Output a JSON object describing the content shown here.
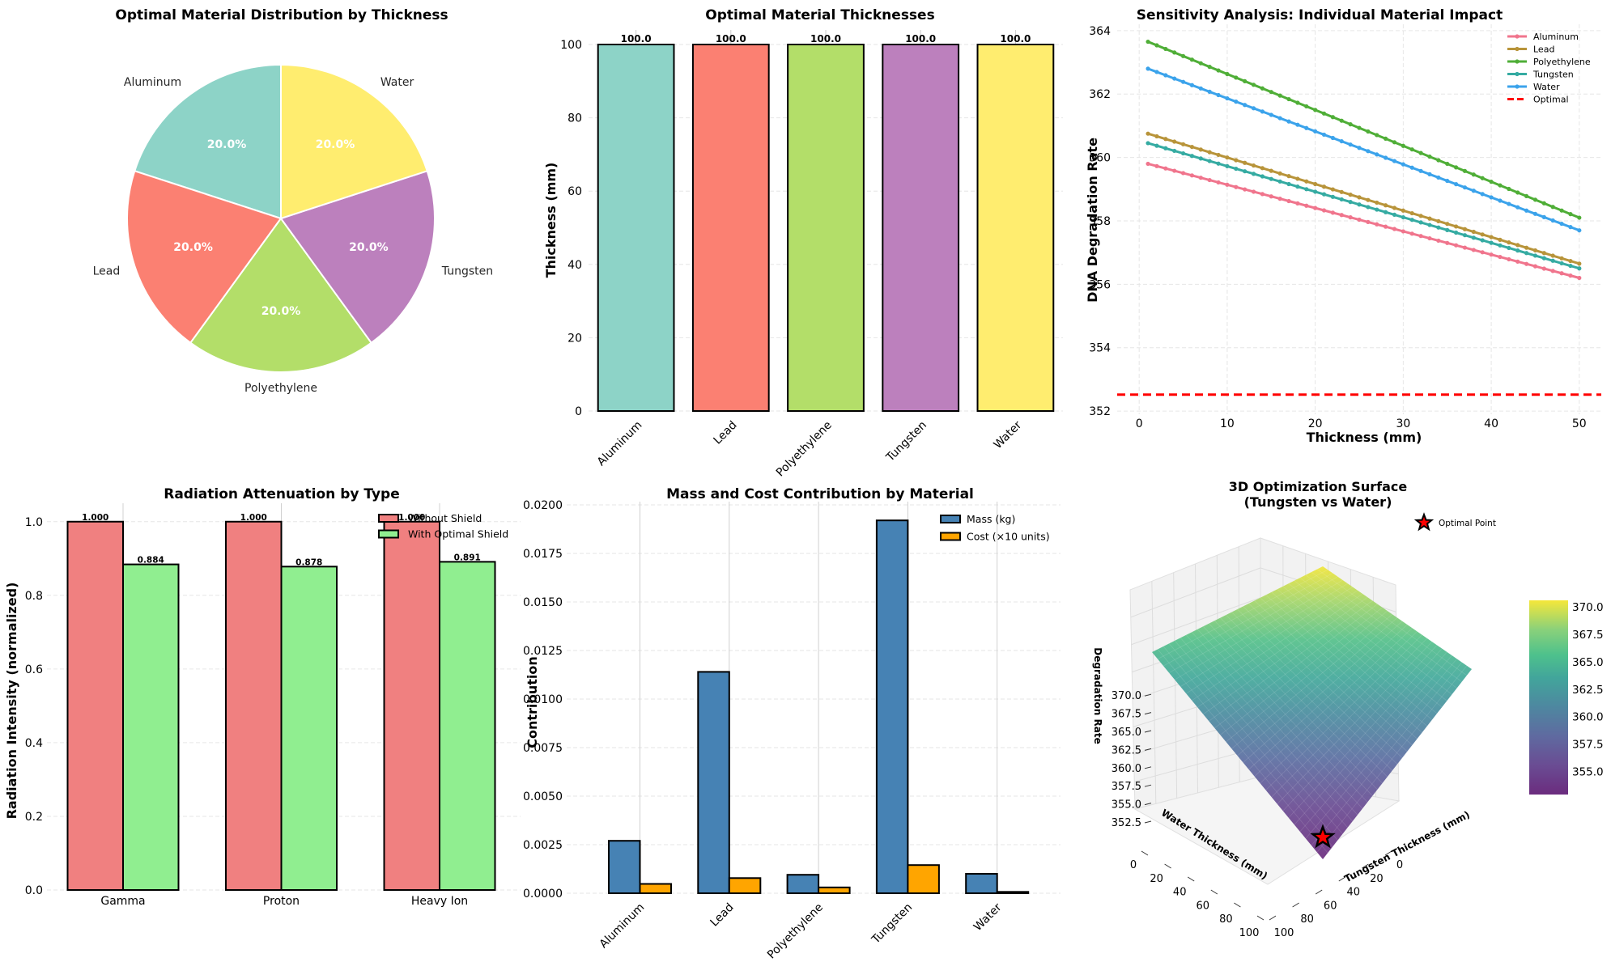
{
  "chart_data": [
    {
      "id": "pie",
      "type": "pie",
      "title": "Optimal Material Distribution by Thickness",
      "labels": [
        "Aluminum",
        "Lead",
        "Polyethylene",
        "Tungsten",
        "Water"
      ],
      "values": [
        20.0,
        20.0,
        20.0,
        20.0,
        20.0
      ],
      "pct_labels": [
        "20.0%",
        "20.0%",
        "20.0%",
        "20.0%",
        "20.0%"
      ],
      "colors": [
        "#8dd3c7",
        "#fb8072",
        "#b3de69",
        "#bc80bd",
        "#ffed6f"
      ],
      "start_angle_deg": 90,
      "direction": "counterclockwise"
    },
    {
      "id": "thickness",
      "type": "bar",
      "title": "Optimal Material Thicknesses",
      "categories": [
        "Aluminum",
        "Lead",
        "Polyethylene",
        "Tungsten",
        "Water"
      ],
      "values": [
        100.0,
        100.0,
        100.0,
        100.0,
        100.0
      ],
      "value_labels": [
        "100.0",
        "100.0",
        "100.0",
        "100.0",
        "100.0"
      ],
      "colors": [
        "#8dd3c7",
        "#fb8072",
        "#b3de69",
        "#bc80bd",
        "#ffed6f"
      ],
      "xlabel": "",
      "ylabel": "Thickness (mm)",
      "ylim": [
        0,
        100
      ],
      "yticks": [
        0,
        20,
        40,
        60,
        80,
        100
      ],
      "grid": "y dashed"
    },
    {
      "id": "sensitivity",
      "type": "line",
      "title": "Sensitivity Analysis: Individual Material Impact",
      "xlabel": "Thickness (mm)",
      "ylabel": "DNA Degradation Rate",
      "x_range": [
        1,
        50
      ],
      "x_step": 1,
      "xlim": [
        -2.5,
        52.5
      ],
      "ylim": [
        351.9,
        364.2
      ],
      "xticks": [
        0,
        10,
        20,
        30,
        40,
        50
      ],
      "yticks": [
        352,
        354,
        356,
        358,
        360,
        362,
        364
      ],
      "series": [
        {
          "name": "Aluminum",
          "color": "#f0758d",
          "start": 359.8,
          "end": 356.2
        },
        {
          "name": "Lead",
          "color": "#b8943a",
          "start": 360.75,
          "end": 356.65
        },
        {
          "name": "Polyethylene",
          "color": "#4fae37",
          "start": 363.65,
          "end": 358.1
        },
        {
          "name": "Tungsten",
          "color": "#35aba2",
          "start": 360.45,
          "end": 356.5
        },
        {
          "name": "Water",
          "color": "#3ba3eb",
          "start": 362.8,
          "end": 357.7
        }
      ],
      "reference_line": {
        "name": "Optimal",
        "value": 352.52,
        "color": "#ff0000",
        "style": "dashed"
      },
      "legend": "top-right",
      "grid": "both dashed"
    },
    {
      "id": "attenuation",
      "type": "bar",
      "title": "Radiation Attenuation by Type",
      "categories": [
        "Gamma",
        "Proton",
        "Heavy Ion"
      ],
      "series": [
        {
          "name": "Without Shield",
          "color": "#f08080",
          "values": [
            1.0,
            1.0,
            1.0
          ],
          "labels": [
            "1.000",
            "1.000",
            "1.000"
          ]
        },
        {
          "name": "With Optimal Shield",
          "color": "#90ee90",
          "values": [
            0.884,
            0.878,
            0.891
          ],
          "labels": [
            "0.884",
            "0.878",
            "0.891"
          ]
        }
      ],
      "xlabel": "",
      "ylabel": "Radiation Intensity (normalized)",
      "ylim": [
        0,
        1.05
      ],
      "yticks": [
        "0.0",
        "0.2",
        "0.4",
        "0.6",
        "0.8",
        "1.0"
      ],
      "legend": "top-right",
      "grid": "y dashed"
    },
    {
      "id": "masscost",
      "type": "bar",
      "title": "Mass and Cost Contribution by Material",
      "categories": [
        "Aluminum",
        "Lead",
        "Polyethylene",
        "Tungsten",
        "Water"
      ],
      "series": [
        {
          "name": "Mass (kg)",
          "color": "#4682b4",
          "values": [
            0.0027,
            0.0114,
            0.00095,
            0.0192,
            0.001
          ]
        },
        {
          "name": "Cost (×10 units)",
          "color": "#ffa500",
          "values": [
            0.00048,
            0.00078,
            0.0003,
            0.00145,
            7e-05
          ]
        }
      ],
      "xlabel": "",
      "ylabel": "Contribution",
      "ylim": [
        0,
        0.02
      ],
      "yticks": [
        "0.0000",
        "0.0025",
        "0.0050",
        "0.0075",
        "0.0100",
        "0.0125",
        "0.0150",
        "0.0175",
        "0.0200"
      ],
      "legend": "top-right",
      "grid": "y dashed"
    },
    {
      "id": "surface",
      "type": "heatmap",
      "subtype": "3d-surface",
      "title": "3D Optimization Surface\n(Tungsten vs Water)",
      "title_lines": [
        "3D Optimization Surface",
        "(Tungsten vs Water)"
      ],
      "xlabel": "Tungsten Thickness (mm)",
      "ylabel": "Water Thickness (mm)",
      "zlabel": "Degradation Rate",
      "x_ticks": [
        "0",
        "20",
        "40",
        "60",
        "80",
        "100"
      ],
      "y_ticks": [
        "0",
        "20",
        "40",
        "60",
        "80",
        "100"
      ],
      "z_ticks": [
        "352.5",
        "355.0",
        "357.5",
        "360.0",
        "362.5",
        "365.0",
        "367.5",
        "370.0"
      ],
      "corner_values": {
        "w0_t0": 370.6,
        "w0_t100": 361.9,
        "w100_t0": 361.5,
        "w100_t100": 352.9
      },
      "colormap": "viridis",
      "colorbar_range": [
        352.9,
        370.6
      ],
      "colorbar_ticks": [
        "355.0",
        "357.5",
        "360.0",
        "362.5",
        "365.0",
        "367.5",
        "370.0"
      ],
      "optimal_point": {
        "tungsten": 100,
        "water": 100,
        "label": "Optimal Point"
      }
    }
  ]
}
